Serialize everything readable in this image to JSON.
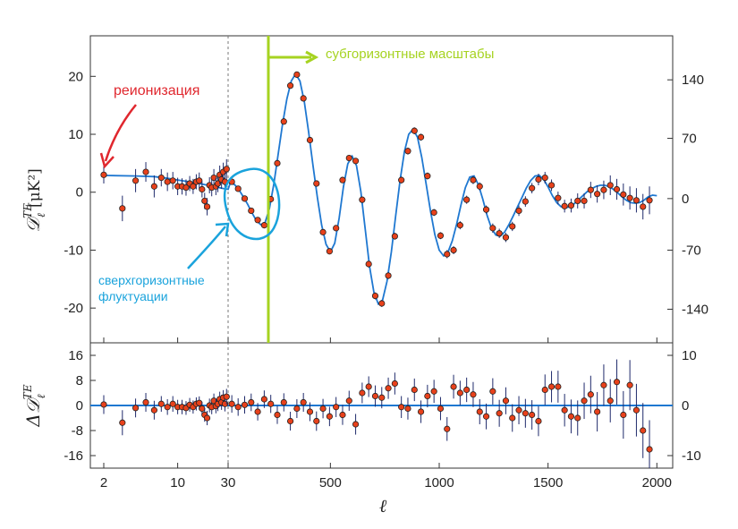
{
  "chart_data": {
    "type": "scatter",
    "xlabel": "ℓ",
    "x_ticks": [
      "2",
      "10",
      "30",
      "500",
      "1000",
      "1500",
      "2000"
    ],
    "upper_panel": {
      "ylabel_main": "𝒟",
      "ylabel_sup": "TE",
      "ylabel_sub": "ℓ",
      "ylabel_units": "[μK²]",
      "ylim": [
        -26,
        27
      ],
      "left_ticks": [
        "20",
        "10",
        "0",
        "-10",
        "-20"
      ],
      "left_tick_values": [
        20,
        10,
        0,
        -10,
        -20
      ],
      "right_ticks": [
        "140",
        "70",
        "0",
        "-70",
        "-140"
      ],
      "right_tick_values": [
        19.4,
        9.3,
        -1.1,
        -10.0,
        -20.2
      ]
    },
    "lower_panel": {
      "ylabel_main": "Δ𝒟",
      "ylabel_sup": "TE",
      "ylabel_sub": "ℓ",
      "ylim": [
        -20,
        20
      ],
      "left_ticks": [
        "16",
        "8",
        "0",
        "-8",
        "-16"
      ],
      "left_tick_values": [
        16,
        8,
        0,
        -8,
        -16
      ],
      "right_ticks": [
        "10",
        "0",
        "-10"
      ],
      "right_tick_values": [
        10,
        0,
        -10
      ]
    },
    "low_l_points": [
      {
        "l": 2,
        "y": 3.0,
        "err": 1.5
      },
      {
        "l": 3,
        "y": -2.8,
        "err": 2.2
      },
      {
        "l": 4,
        "y": 2.0,
        "err": 2.0
      },
      {
        "l": 5,
        "y": 3.5,
        "err": 1.7
      },
      {
        "l": 6,
        "y": 1.0,
        "err": 1.9
      },
      {
        "l": 7,
        "y": 2.5,
        "err": 1.5
      },
      {
        "l": 8,
        "y": 1.8,
        "err": 1.6
      },
      {
        "l": 9,
        "y": 2.0,
        "err": 1.5
      },
      {
        "l": 10,
        "y": 1.0,
        "err": 1.5
      },
      {
        "l": 11,
        "y": 1.0,
        "err": 1.4
      },
      {
        "l": 12,
        "y": 0.8,
        "err": 1.4
      },
      {
        "l": 13,
        "y": 1.5,
        "err": 1.3
      },
      {
        "l": 14,
        "y": 1.0,
        "err": 1.3
      },
      {
        "l": 15,
        "y": 1.8,
        "err": 1.3
      },
      {
        "l": 16,
        "y": 2.0,
        "err": 1.4
      },
      {
        "l": 17,
        "y": 0.5,
        "err": 1.4
      },
      {
        "l": 18,
        "y": -1.5,
        "err": 1.4
      },
      {
        "l": 19,
        "y": -2.5,
        "err": 1.5
      },
      {
        "l": 20,
        "y": 1.2,
        "err": 1.4
      },
      {
        "l": 21,
        "y": 0.8,
        "err": 1.5
      },
      {
        "l": 22,
        "y": 2.5,
        "err": 1.5
      },
      {
        "l": 23,
        "y": 1.0,
        "err": 1.5
      },
      {
        "l": 24,
        "y": 1.5,
        "err": 1.5
      },
      {
        "l": 25,
        "y": 3.0,
        "err": 1.6
      },
      {
        "l": 26,
        "y": 2.2,
        "err": 1.6
      },
      {
        "l": 27,
        "y": 3.5,
        "err": 1.6
      },
      {
        "l": 28,
        "y": 1.8,
        "err": 1.6
      },
      {
        "l": 29,
        "y": 4.0,
        "err": 1.7
      }
    ],
    "binned_points": [
      {
        "l": 47,
        "y": 1.8,
        "err": 0.3
      },
      {
        "l": 76,
        "y": 0.6,
        "err": 0.3
      },
      {
        "l": 106,
        "y": -1.1,
        "err": 0.3
      },
      {
        "l": 136,
        "y": -3.2,
        "err": 0.3
      },
      {
        "l": 166,
        "y": -4.8,
        "err": 0.3
      },
      {
        "l": 196,
        "y": -5.7,
        "err": 0.3
      },
      {
        "l": 226,
        "y": -1.2,
        "err": 0.4
      },
      {
        "l": 256,
        "y": 5.0,
        "err": 0.4
      },
      {
        "l": 286,
        "y": 12.2,
        "err": 0.4
      },
      {
        "l": 316,
        "y": 18.4,
        "err": 0.5
      },
      {
        "l": 346,
        "y": 20.3,
        "err": 0.5
      },
      {
        "l": 376,
        "y": 16.2,
        "err": 0.5
      },
      {
        "l": 406,
        "y": 9.0,
        "err": 0.5
      },
      {
        "l": 436,
        "y": 1.5,
        "err": 0.5
      },
      {
        "l": 466,
        "y": -6.9,
        "err": 0.5
      },
      {
        "l": 496,
        "y": -10.2,
        "err": 0.5
      },
      {
        "l": 526,
        "y": -6.2,
        "err": 0.5
      },
      {
        "l": 556,
        "y": 2.1,
        "err": 0.5
      },
      {
        "l": 586,
        "y": 5.9,
        "err": 0.5
      },
      {
        "l": 616,
        "y": 5.4,
        "err": 0.5
      },
      {
        "l": 646,
        "y": -1.3,
        "err": 0.5
      },
      {
        "l": 676,
        "y": -12.4,
        "err": 0.6
      },
      {
        "l": 706,
        "y": -17.9,
        "err": 0.6
      },
      {
        "l": 736,
        "y": -19.2,
        "err": 0.6
      },
      {
        "l": 766,
        "y": -14.4,
        "err": 0.6
      },
      {
        "l": 796,
        "y": -7.6,
        "err": 0.6
      },
      {
        "l": 826,
        "y": 2.1,
        "err": 0.6
      },
      {
        "l": 856,
        "y": 7.1,
        "err": 0.6
      },
      {
        "l": 886,
        "y": 10.6,
        "err": 0.6
      },
      {
        "l": 916,
        "y": 9.5,
        "err": 0.6
      },
      {
        "l": 946,
        "y": 2.8,
        "err": 0.6
      },
      {
        "l": 976,
        "y": -3.5,
        "err": 0.6
      },
      {
        "l": 1006,
        "y": -7.5,
        "err": 0.6
      },
      {
        "l": 1036,
        "y": -10.7,
        "err": 0.7
      },
      {
        "l": 1066,
        "y": -10.0,
        "err": 0.7
      },
      {
        "l": 1096,
        "y": -5.7,
        "err": 0.7
      },
      {
        "l": 1126,
        "y": -1.3,
        "err": 0.7
      },
      {
        "l": 1156,
        "y": 2.1,
        "err": 0.7
      },
      {
        "l": 1186,
        "y": 1.0,
        "err": 0.7
      },
      {
        "l": 1216,
        "y": -3.0,
        "err": 0.7
      },
      {
        "l": 1246,
        "y": -6.2,
        "err": 0.8
      },
      {
        "l": 1276,
        "y": -7.1,
        "err": 0.8
      },
      {
        "l": 1306,
        "y": -7.8,
        "err": 0.8
      },
      {
        "l": 1336,
        "y": -5.9,
        "err": 0.8
      },
      {
        "l": 1366,
        "y": -3.2,
        "err": 0.9
      },
      {
        "l": 1396,
        "y": -1.6,
        "err": 0.9
      },
      {
        "l": 1426,
        "y": 0.7,
        "err": 0.9
      },
      {
        "l": 1456,
        "y": 2.2,
        "err": 1.0
      },
      {
        "l": 1486,
        "y": 2.5,
        "err": 1.0
      },
      {
        "l": 1516,
        "y": 1.2,
        "err": 1.0
      },
      {
        "l": 1546,
        "y": -1.0,
        "err": 1.1
      },
      {
        "l": 1576,
        "y": -2.4,
        "err": 1.1
      },
      {
        "l": 1606,
        "y": -2.3,
        "err": 1.2
      },
      {
        "l": 1636,
        "y": -1.5,
        "err": 1.3
      },
      {
        "l": 1666,
        "y": -1.5,
        "err": 1.3
      },
      {
        "l": 1696,
        "y": 0.4,
        "err": 1.4
      },
      {
        "l": 1726,
        "y": -0.3,
        "err": 1.5
      },
      {
        "l": 1756,
        "y": 0.4,
        "err": 1.6
      },
      {
        "l": 1786,
        "y": 1.2,
        "err": 1.7
      },
      {
        "l": 1816,
        "y": 0.5,
        "err": 1.8
      },
      {
        "l": 1846,
        "y": -0.4,
        "err": 1.9
      },
      {
        "l": 1876,
        "y": -1.0,
        "err": 2.0
      },
      {
        "l": 1906,
        "y": -1.4,
        "err": 2.1
      },
      {
        "l": 1936,
        "y": -2.5,
        "err": 2.2
      },
      {
        "l": 1966,
        "y": -1.4,
        "err": 2.4
      }
    ],
    "residuals_low_l": [
      {
        "l": 2,
        "y": 0.3,
        "err": 3.0
      },
      {
        "l": 3,
        "y": -5.5,
        "err": 4.0
      },
      {
        "l": 4,
        "y": -0.8,
        "err": 3.0
      },
      {
        "l": 5,
        "y": 1.0,
        "err": 3.0
      },
      {
        "l": 6,
        "y": -1.5,
        "err": 3.0
      },
      {
        "l": 7,
        "y": 0.5,
        "err": 2.5
      },
      {
        "l": 8,
        "y": -0.5,
        "err": 2.5
      },
      {
        "l": 9,
        "y": 0.5,
        "err": 2.5
      },
      {
        "l": 10,
        "y": -0.5,
        "err": 2.3
      },
      {
        "l": 11,
        "y": -0.5,
        "err": 2.3
      },
      {
        "l": 12,
        "y": -0.8,
        "err": 2.2
      },
      {
        "l": 13,
        "y": 0.2,
        "err": 2.2
      },
      {
        "l": 14,
        "y": -0.5,
        "err": 2.1
      },
      {
        "l": 15,
        "y": 0.5,
        "err": 2.1
      },
      {
        "l": 16,
        "y": 0.8,
        "err": 2.1
      },
      {
        "l": 17,
        "y": -1.0,
        "err": 2.1
      },
      {
        "l": 18,
        "y": -3.0,
        "err": 2.2
      },
      {
        "l": 19,
        "y": -4.0,
        "err": 2.3
      },
      {
        "l": 20,
        "y": 0.0,
        "err": 2.2
      },
      {
        "l": 21,
        "y": -0.5,
        "err": 2.3
      },
      {
        "l": 22,
        "y": 1.5,
        "err": 2.3
      },
      {
        "l": 23,
        "y": -0.2,
        "err": 2.3
      },
      {
        "l": 24,
        "y": 0.5,
        "err": 2.3
      },
      {
        "l": 25,
        "y": 2.0,
        "err": 2.4
      },
      {
        "l": 26,
        "y": 1.0,
        "err": 2.4
      },
      {
        "l": 27,
        "y": 2.5,
        "err": 2.4
      },
      {
        "l": 28,
        "y": 0.5,
        "err": 2.4
      },
      {
        "l": 29,
        "y": 2.8,
        "err": 2.5
      }
    ],
    "residuals_binned": [
      {
        "l": 47,
        "y": 0.5,
        "err": 2.8
      },
      {
        "l": 76,
        "y": -0.5,
        "err": 2.8
      },
      {
        "l": 106,
        "y": 0.2,
        "err": 2.8
      },
      {
        "l": 136,
        "y": 1.0,
        "err": 2.8
      },
      {
        "l": 166,
        "y": -2.0,
        "err": 2.8
      },
      {
        "l": 196,
        "y": 2.0,
        "err": 2.8
      },
      {
        "l": 226,
        "y": 0.5,
        "err": 2.9
      },
      {
        "l": 256,
        "y": -3.0,
        "err": 2.9
      },
      {
        "l": 286,
        "y": 1.0,
        "err": 2.9
      },
      {
        "l": 316,
        "y": -5.0,
        "err": 3.0
      },
      {
        "l": 346,
        "y": -1.0,
        "err": 3.0
      },
      {
        "l": 376,
        "y": 1.0,
        "err": 3.0
      },
      {
        "l": 406,
        "y": -2.0,
        "err": 3.0
      },
      {
        "l": 436,
        "y": -5.0,
        "err": 3.1
      },
      {
        "l": 466,
        "y": -1.0,
        "err": 3.1
      },
      {
        "l": 496,
        "y": -3.5,
        "err": 3.1
      },
      {
        "l": 526,
        "y": -0.5,
        "err": 3.2
      },
      {
        "l": 556,
        "y": -3.0,
        "err": 3.2
      },
      {
        "l": 586,
        "y": 1.5,
        "err": 3.2
      },
      {
        "l": 616,
        "y": -6.0,
        "err": 3.3
      },
      {
        "l": 646,
        "y": 4.0,
        "err": 3.3
      },
      {
        "l": 676,
        "y": 6.0,
        "err": 3.3
      },
      {
        "l": 706,
        "y": 3.0,
        "err": 3.4
      },
      {
        "l": 736,
        "y": 2.5,
        "err": 3.4
      },
      {
        "l": 766,
        "y": 5.5,
        "err": 3.4
      },
      {
        "l": 796,
        "y": 7.0,
        "err": 3.5
      },
      {
        "l": 826,
        "y": -0.5,
        "err": 3.5
      },
      {
        "l": 856,
        "y": -1.0,
        "err": 3.5
      },
      {
        "l": 886,
        "y": 5.0,
        "err": 3.6
      },
      {
        "l": 916,
        "y": -2.0,
        "err": 3.6
      },
      {
        "l": 946,
        "y": 3.0,
        "err": 3.6
      },
      {
        "l": 976,
        "y": 4.5,
        "err": 3.7
      },
      {
        "l": 1006,
        "y": -1.0,
        "err": 3.7
      },
      {
        "l": 1036,
        "y": -7.5,
        "err": 3.8
      },
      {
        "l": 1066,
        "y": 6.0,
        "err": 3.8
      },
      {
        "l": 1096,
        "y": 4.0,
        "err": 3.9
      },
      {
        "l": 1126,
        "y": 5.0,
        "err": 3.9
      },
      {
        "l": 1156,
        "y": 3.5,
        "err": 4.0
      },
      {
        "l": 1186,
        "y": -2.0,
        "err": 4.0
      },
      {
        "l": 1216,
        "y": -3.5,
        "err": 4.1
      },
      {
        "l": 1246,
        "y": 4.5,
        "err": 4.2
      },
      {
        "l": 1276,
        "y": -2.5,
        "err": 4.3
      },
      {
        "l": 1306,
        "y": 1.5,
        "err": 4.3
      },
      {
        "l": 1336,
        "y": -4.0,
        "err": 4.4
      },
      {
        "l": 1366,
        "y": -1.5,
        "err": 4.5
      },
      {
        "l": 1396,
        "y": -2.5,
        "err": 4.6
      },
      {
        "l": 1426,
        "y": -3.0,
        "err": 4.7
      },
      {
        "l": 1456,
        "y": -5.0,
        "err": 4.8
      },
      {
        "l": 1486,
        "y": 5.0,
        "err": 4.9
      },
      {
        "l": 1516,
        "y": 6.0,
        "err": 5.0
      },
      {
        "l": 1546,
        "y": 6.0,
        "err": 5.1
      },
      {
        "l": 1576,
        "y": -1.5,
        "err": 5.2
      },
      {
        "l": 1606,
        "y": -3.5,
        "err": 5.4
      },
      {
        "l": 1636,
        "y": -4.0,
        "err": 5.6
      },
      {
        "l": 1666,
        "y": 1.5,
        "err": 5.8
      },
      {
        "l": 1696,
        "y": 3.5,
        "err": 6.0
      },
      {
        "l": 1726,
        "y": -2.0,
        "err": 6.3
      },
      {
        "l": 1756,
        "y": 6.5,
        "err": 6.6
      },
      {
        "l": 1786,
        "y": 1.5,
        "err": 6.9
      },
      {
        "l": 1816,
        "y": 7.5,
        "err": 7.2
      },
      {
        "l": 1846,
        "y": -3.0,
        "err": 7.6
      },
      {
        "l": 1876,
        "y": 6.5,
        "err": 8.0
      },
      {
        "l": 1906,
        "y": -1.5,
        "err": 8.4
      },
      {
        "l": 1936,
        "y": -8.0,
        "err": 8.8
      },
      {
        "l": 1966,
        "y": -14.0,
        "err": 9.3
      }
    ],
    "model_curve": [
      [
        2,
        2.9
      ],
      [
        4,
        2.8
      ],
      [
        6,
        2.7
      ],
      [
        8,
        2.4
      ],
      [
        10,
        2.1
      ],
      [
        14,
        1.7
      ],
      [
        18,
        1.3
      ],
      [
        22,
        1.0
      ],
      [
        26,
        0.7
      ],
      [
        30,
        0.5
      ],
      [
        40,
        1.6
      ],
      [
        60,
        1.3
      ],
      [
        80,
        0.4
      ],
      [
        100,
        -0.8
      ],
      [
        120,
        -2.1
      ],
      [
        140,
        -3.6
      ],
      [
        160,
        -4.9
      ],
      [
        180,
        -5.6
      ],
      [
        200,
        -5.2
      ],
      [
        220,
        -2.8
      ],
      [
        240,
        1.4
      ],
      [
        260,
        6.6
      ],
      [
        280,
        11.7
      ],
      [
        300,
        16.1
      ],
      [
        320,
        19.2
      ],
      [
        340,
        20.4
      ],
      [
        360,
        19.2
      ],
      [
        380,
        15.6
      ],
      [
        400,
        10.4
      ],
      [
        420,
        4.6
      ],
      [
        440,
        -0.9
      ],
      [
        460,
        -5.7
      ],
      [
        480,
        -9.0
      ],
      [
        500,
        -10.3
      ],
      [
        520,
        -8.8
      ],
      [
        540,
        -4.5
      ],
      [
        560,
        0.9
      ],
      [
        580,
        4.9
      ],
      [
        600,
        6.2
      ],
      [
        620,
        4.6
      ],
      [
        640,
        0.1
      ],
      [
        660,
        -6.4
      ],
      [
        680,
        -12.8
      ],
      [
        700,
        -17.3
      ],
      [
        720,
        -19.3
      ],
      [
        740,
        -18.6
      ],
      [
        760,
        -15.4
      ],
      [
        780,
        -10.3
      ],
      [
        800,
        -4.1
      ],
      [
        820,
        2.0
      ],
      [
        840,
        7.0
      ],
      [
        860,
        10.0
      ],
      [
        880,
        10.9
      ],
      [
        900,
        9.5
      ],
      [
        920,
        6.0
      ],
      [
        940,
        1.4
      ],
      [
        960,
        -3.3
      ],
      [
        980,
        -7.3
      ],
      [
        1000,
        -10.0
      ],
      [
        1020,
        -11.0
      ],
      [
        1040,
        -10.4
      ],
      [
        1060,
        -8.4
      ],
      [
        1080,
        -5.5
      ],
      [
        1100,
        -2.2
      ],
      [
        1120,
        0.8
      ],
      [
        1140,
        2.6
      ],
      [
        1160,
        2.8
      ],
      [
        1180,
        1.3
      ],
      [
        1200,
        -1.2
      ],
      [
        1220,
        -4.0
      ],
      [
        1240,
        -6.2
      ],
      [
        1260,
        -7.4
      ],
      [
        1280,
        -7.6
      ],
      [
        1300,
        -6.9
      ],
      [
        1320,
        -5.6
      ],
      [
        1340,
        -4.1
      ],
      [
        1360,
        -2.5
      ],
      [
        1380,
        -0.9
      ],
      [
        1400,
        0.7
      ],
      [
        1420,
        2.0
      ],
      [
        1440,
        2.8
      ],
      [
        1460,
        2.9
      ],
      [
        1480,
        2.2
      ],
      [
        1500,
        0.9
      ],
      [
        1520,
        -0.6
      ],
      [
        1540,
        -1.8
      ],
      [
        1560,
        -2.5
      ],
      [
        1580,
        -2.7
      ],
      [
        1600,
        -2.5
      ],
      [
        1620,
        -2.0
      ],
      [
        1640,
        -1.3
      ],
      [
        1660,
        -0.6
      ],
      [
        1680,
        0.1
      ],
      [
        1700,
        0.6
      ],
      [
        1720,
        1.0
      ],
      [
        1740,
        1.2
      ],
      [
        1760,
        1.2
      ],
      [
        1780,
        1.0
      ],
      [
        1800,
        0.5
      ],
      [
        1820,
        -0.1
      ],
      [
        1840,
        -0.8
      ],
      [
        1860,
        -1.4
      ],
      [
        1880,
        -1.8
      ],
      [
        1900,
        -1.9
      ],
      [
        1920,
        -1.8
      ],
      [
        1940,
        -1.4
      ],
      [
        1960,
        -0.8
      ],
      [
        1980,
        -0.5
      ],
      [
        2000,
        -0.6
      ]
    ],
    "annotations": {
      "reionization": "реионизация",
      "superhorizon_line1": "сверхгоризонтные",
      "superhorizon_line2": "флуктуации",
      "subhorizon": "субгоризонтные масштабы"
    },
    "colors": {
      "point_fill": "#e8411b",
      "curve": "#1f78d1",
      "reionization": "#e0272e",
      "superhorizon": "#1aa3dc",
      "subhorizon": "#a6d321"
    }
  }
}
